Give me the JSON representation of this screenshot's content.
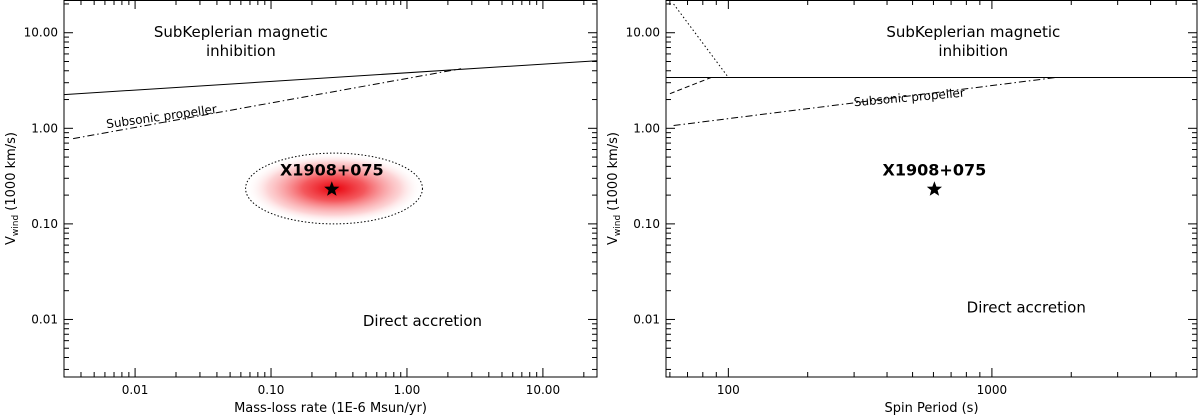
{
  "chart_data": [
    {
      "type": "line",
      "xscale": "log",
      "yscale": "log",
      "xlim": [
        0.003,
        25
      ],
      "ylim": [
        0.0025,
        22
      ],
      "xlabel": "Mass-loss rate (1E-6 Msun/yr)",
      "ylabel_main": "V",
      "ylabel_sub": "wind",
      "ylabel_rest": " (1000 km/s)",
      "xticks": [
        {
          "value": 0.01,
          "label": "0.01"
        },
        {
          "value": 0.1,
          "label": "0.10"
        },
        {
          "value": 1,
          "label": "1.00"
        },
        {
          "value": 10,
          "label": "10.00"
        }
      ],
      "yticks": [
        {
          "value": 0.01,
          "label": "0.01"
        },
        {
          "value": 0.1,
          "label": "0.10"
        },
        {
          "value": 1,
          "label": "1.00"
        },
        {
          "value": 10,
          "label": "10.00"
        }
      ],
      "series": [
        {
          "name": "SubKeplerian magnetic inhibition boundary",
          "style": "solid",
          "x": [
            0.003,
            25
          ],
          "y": [
            2.25,
            5.1
          ]
        },
        {
          "name": "Subsonic propeller boundary",
          "style": "dashdot",
          "x": [
            0.0035,
            2.5
          ],
          "y": [
            0.78,
            4.2
          ]
        }
      ],
      "regions": [
        {
          "lines": [
            "SubKeplerian magnetic",
            "inhibition"
          ],
          "x": 0.06,
          "y": 9.0
        },
        {
          "lines": [
            "Direct accretion"
          ],
          "x": 1.3,
          "y": 0.0085
        }
      ],
      "curve_labels": [
        {
          "text": "Subsonic propeller",
          "x": 0.0062,
          "y": 1.0,
          "angle": -8
        }
      ],
      "point": {
        "label": "X1908+075",
        "x": 0.28,
        "y": 0.23
      },
      "ellipse": {
        "x_range": [
          0.065,
          1.3
        ],
        "y_range": [
          0.1,
          0.55
        ]
      }
    },
    {
      "type": "line",
      "xscale": "log",
      "yscale": "log",
      "xlim": [
        58,
        6000
      ],
      "ylim": [
        0.0025,
        22
      ],
      "xlabel": "Spin Period (s)",
      "ylabel_main": "V",
      "ylabel_sub": "wind",
      "ylabel_rest": " (1000 km/s)",
      "xticks": [
        {
          "value": 100,
          "label": "100"
        },
        {
          "value": 1000,
          "label": "1000"
        }
      ],
      "yticks": [
        {
          "value": 0.01,
          "label": "0.01"
        },
        {
          "value": 0.1,
          "label": "0.10"
        },
        {
          "value": 1,
          "label": "1.00"
        },
        {
          "value": 10,
          "label": "10.00"
        }
      ],
      "series": [
        {
          "name": "SubKeplerian magnetic inhibition boundary",
          "style": "solid",
          "x": [
            58,
            6000
          ],
          "y": [
            3.4,
            3.4
          ]
        },
        {
          "name": "Subsonic propeller boundary",
          "style": "dashdot",
          "x": [
            62,
            1750
          ],
          "y": [
            1.07,
            3.4
          ]
        },
        {
          "name": "Short-period boundary (dotted)",
          "style": "dotted",
          "x": [
            62,
            100
          ],
          "y": [
            20,
            3.4
          ]
        },
        {
          "name": "Short-period boundary (dashed)",
          "style": "dashed",
          "x": [
            60,
            86
          ],
          "y": [
            2.3,
            3.4
          ]
        }
      ],
      "regions": [
        {
          "lines": [
            "SubKeplerian magnetic",
            "inhibition"
          ],
          "x": 850,
          "y": 9.0
        },
        {
          "lines": [
            "Direct accretion"
          ],
          "x": 1350,
          "y": 0.0118
        }
      ],
      "curve_labels": [
        {
          "text": "Subsonic propeller",
          "x": 300,
          "y": 1.7,
          "angle": -5
        }
      ],
      "point": {
        "label": "X1908+075",
        "x": 605,
        "y": 0.23
      }
    }
  ]
}
